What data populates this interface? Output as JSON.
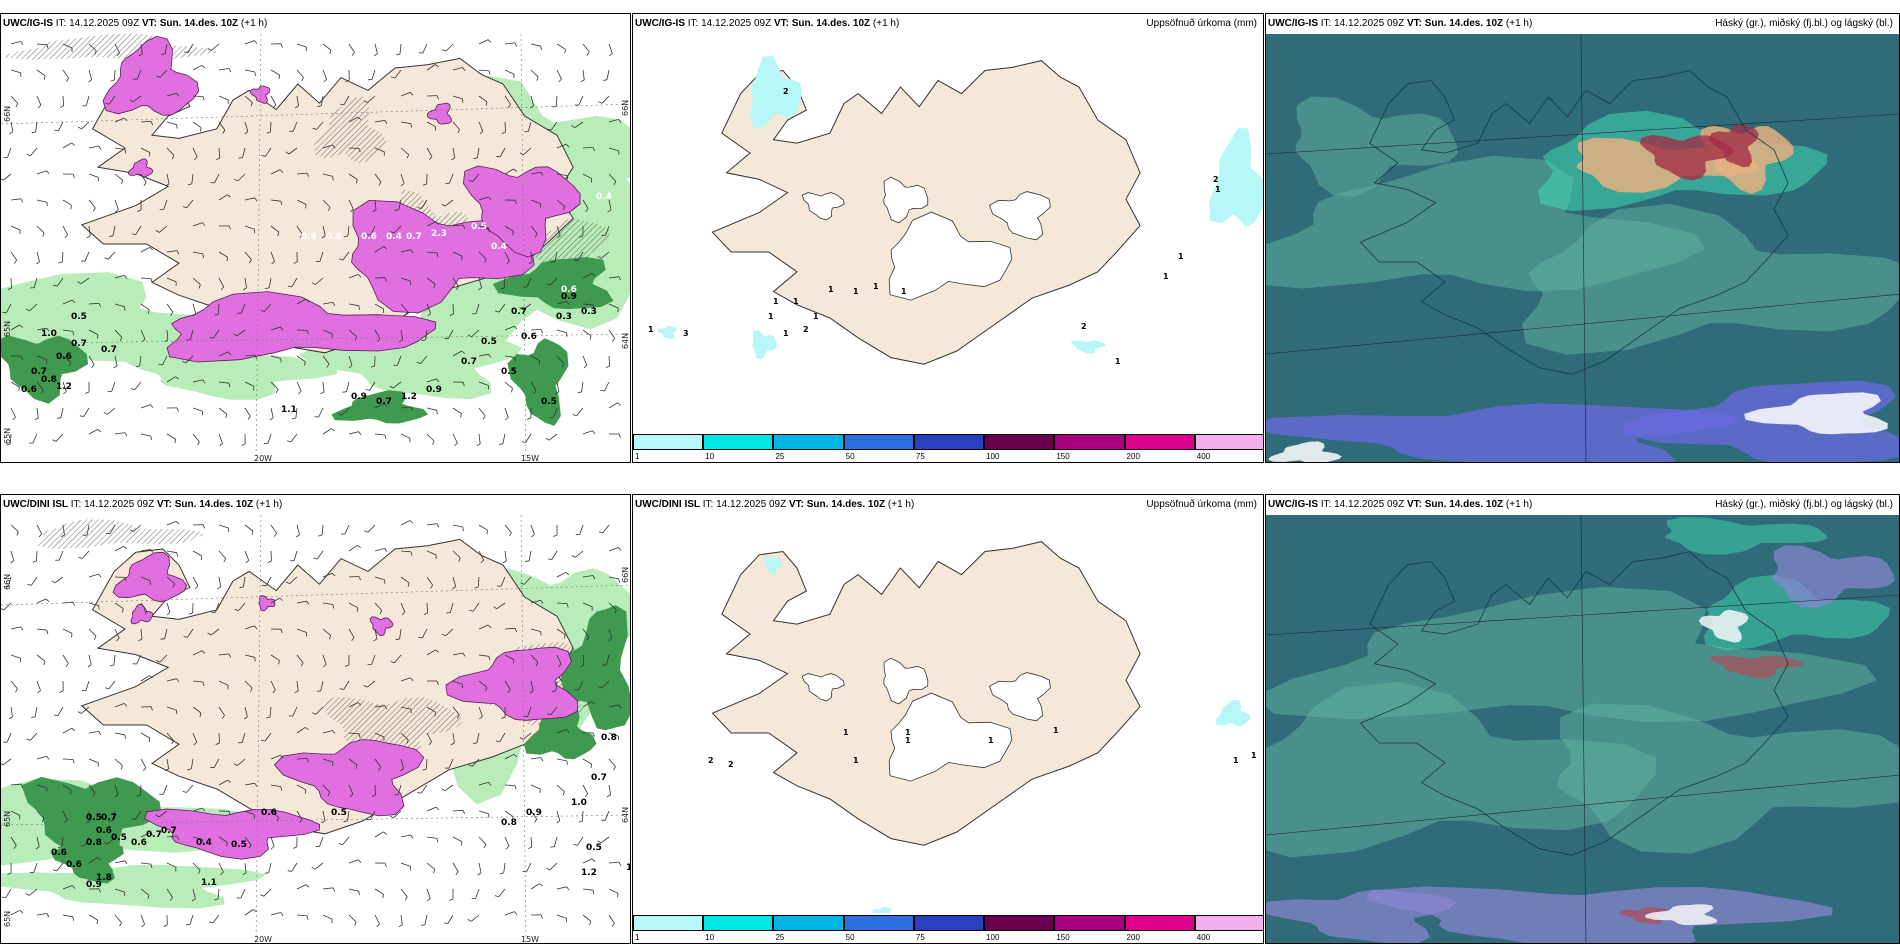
{
  "rows": [
    {
      "wind": {
        "model": "UWC/IG-IS",
        "it_label": "IT:",
        "it_value": "14.12.2025 09Z",
        "vt_label": "VT:",
        "vt_value": "Sun. 14.des. 10Z",
        "lead": "(+1 h)"
      },
      "precip": {
        "model": "UWC/IG-IS",
        "it_label": "IT:",
        "it_value": "14.12.2025 09Z",
        "vt_label": "VT:",
        "vt_value": "Sun. 14.des. 10Z",
        "lead": "(+1 h)",
        "title": "Uppsöfnuð úrkoma (mm)"
      },
      "cloud": {
        "model": "UWC/IG-IS",
        "it_label": "IT:",
        "it_value": "14.12.2025 09Z",
        "vt_label": "VT:",
        "vt_value": "Sun. 14.des. 10Z",
        "lead": "(+1 h)",
        "title": "Háský (gr.), miðský (fj.bl.) og lágský (bl.)"
      }
    },
    {
      "wind": {
        "model": "UWC/DINI ISL",
        "it_label": "IT:",
        "it_value": "14.12.2025 09Z",
        "vt_label": "VT:",
        "vt_value": "Sun. 14.des. 10Z",
        "lead": "(+1 h)"
      },
      "precip": {
        "model": "UWC/DINI ISL",
        "it_label": "IT:",
        "it_value": "14.12.2025 09Z",
        "vt_label": "VT:",
        "vt_value": "Sun. 14.des. 10Z",
        "lead": "(+1 h)",
        "title": "Uppsöfnuð úrkoma (mm)"
      },
      "cloud": {
        "model": "UWC/IG-IS",
        "it_label": "IT:",
        "it_value": "14.12.2025 09Z",
        "vt_label": "VT:",
        "vt_value": "Sun. 14.des. 10Z",
        "lead": "(+1 h)",
        "title": "Háský (gr.), miðský (fj.bl.) og lágský (bl.)"
      }
    }
  ],
  "coords": {
    "lat66": "66N",
    "lat65": "65N",
    "lat64": "64N",
    "lon20": "20W",
    "lon15": "15W"
  },
  "legend": {
    "labels": [
      "1",
      "10",
      "25",
      "50",
      "75",
      "100",
      "150",
      "200",
      "400"
    ],
    "colors": [
      "#b8f7f7",
      "#00e5e5",
      "#00b4e6",
      "#2e6fe0",
      "#2a3fc0",
      "#6b0050",
      "#a8007e",
      "#e0008e",
      "#f2b0ef"
    ]
  },
  "colors": {
    "land": "#f5e8d8",
    "precip_pink": "#e070e0",
    "precip_green": "#3f9a4f",
    "precip_light_green": "#b8ecb8",
    "cloud_base": "#2f6b78"
  },
  "values": {
    "top_wind": [
      "0.5",
      "1.0",
      "0.7",
      "0.7",
      "0.6",
      "0.7",
      "0.8",
      "0.6",
      "1.2",
      "0.9",
      "0.7",
      "0.6",
      "0.5",
      "0.9",
      "0.7",
      "1.2",
      "0.9",
      "0.7",
      "0.5",
      "0.6",
      "0.8",
      "0.6",
      "2.3",
      "0.4",
      "0.4",
      "0.5",
      "0.4",
      "0.7",
      "0.6",
      "0.5",
      "0.3",
      "0.3",
      "1.1"
    ],
    "bottom_wind": [
      "0.5",
      "0.7",
      "0.6",
      "0.8",
      "0.5",
      "0.6",
      "0.6",
      "0.9",
      "1.8",
      "0.7",
      "0.6",
      "0.7",
      "1.1",
      "0.4",
      "0.5",
      "0.5",
      "0.6",
      "0.8",
      "0.9",
      "1.0",
      "0.7",
      "0.5",
      "1.0",
      "1.2",
      "0.8"
    ],
    "top_precip": [
      "1",
      "3",
      "2",
      "1",
      "1",
      "1",
      "1",
      "1",
      "1",
      "1",
      "1",
      "2",
      "1",
      "2",
      "1",
      "1",
      "1",
      "2",
      "1"
    ],
    "bottom_precip": [
      "2",
      "2",
      "1",
      "1",
      "1",
      "1",
      "1",
      "1",
      "1",
      "1"
    ]
  }
}
